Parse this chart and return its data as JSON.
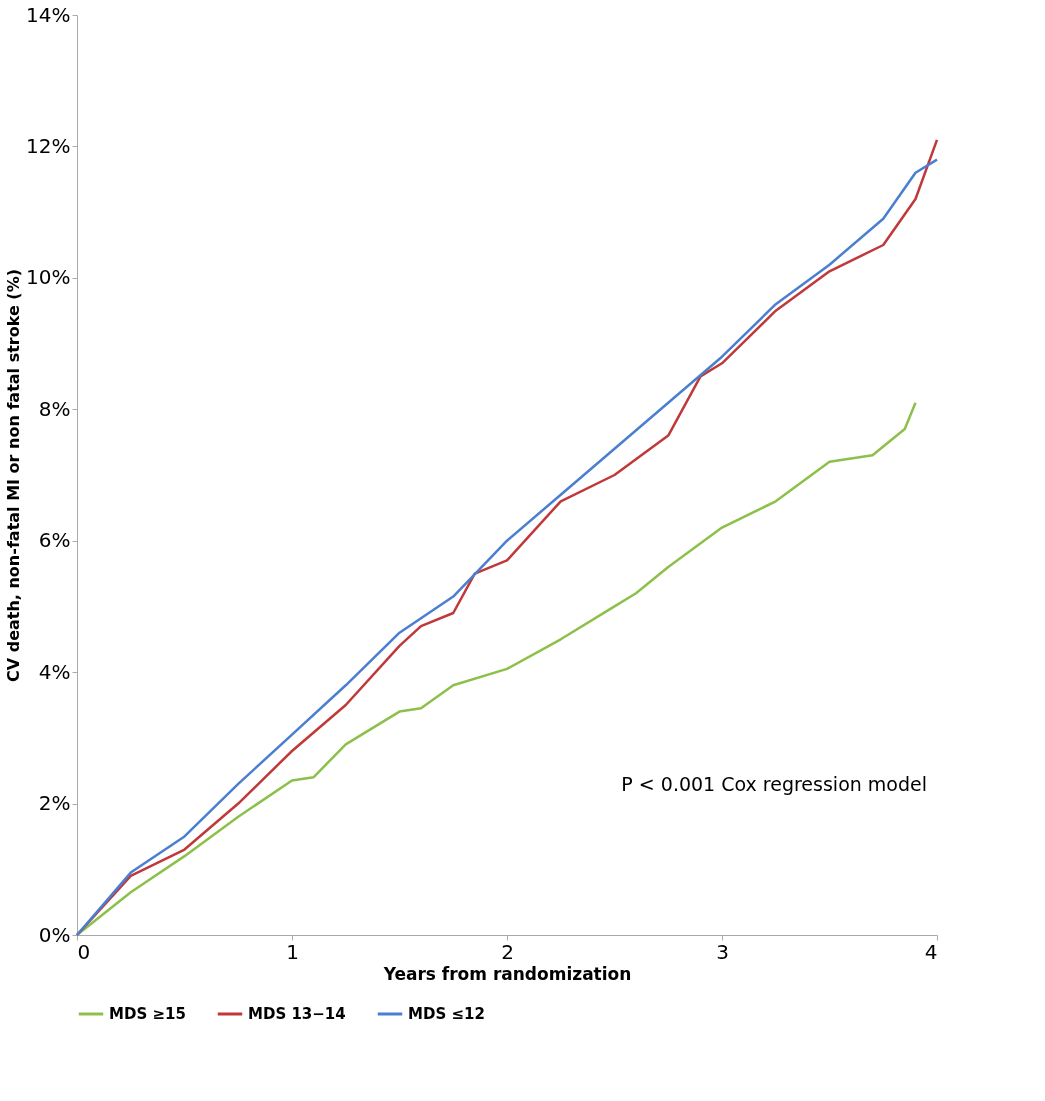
{
  "chart_data": {
    "type": "line",
    "xlabel": "Years from randomization",
    "ylabel": "CV death, non-fatal MI or non fatal stroke (%)",
    "xlim": [
      0,
      4
    ],
    "xticks": [
      0,
      1,
      2,
      3,
      4
    ],
    "ylim": [
      0,
      14
    ],
    "yticks": [
      {
        "value": 0,
        "label": "0%"
      },
      {
        "value": 2,
        "label": "2%"
      },
      {
        "value": 4,
        "label": "4%"
      },
      {
        "value": 6,
        "label": "6%"
      },
      {
        "value": 8,
        "label": "8%"
      },
      {
        "value": 10,
        "label": "10%"
      },
      {
        "value": 12,
        "label": "12%"
      },
      {
        "value": 14,
        "label": "14%"
      }
    ],
    "grid": false,
    "legend": "bottom",
    "line_style": "solid",
    "marker": "none",
    "annotations": [
      "P < 0.001 Cox regression model"
    ],
    "series": [
      {
        "name": "MDS ≥15",
        "color": "#8cc04a",
        "x": [
          0,
          0.25,
          0.5,
          0.75,
          1,
          1.1,
          1.25,
          1.5,
          1.6,
          1.75,
          2,
          2.25,
          2.5,
          2.6,
          2.75,
          3,
          3.25,
          3.5,
          3.7,
          3.85,
          3.9
        ],
        "values": [
          0,
          0.65,
          1.2,
          1.8,
          2.35,
          2.4,
          2.9,
          3.4,
          3.45,
          3.8,
          4.05,
          4.5,
          5.0,
          5.2,
          5.6,
          6.2,
          6.6,
          7.2,
          7.3,
          7.7,
          8.1
        ]
      },
      {
        "name": "MDS 13−14",
        "color": "#c0383a",
        "x": [
          0,
          0.25,
          0.5,
          0.75,
          1,
          1.25,
          1.5,
          1.6,
          1.75,
          1.85,
          2,
          2.25,
          2.5,
          2.75,
          2.9,
          3,
          3.25,
          3.5,
          3.75,
          3.9,
          4
        ],
        "values": [
          0,
          0.9,
          1.3,
          2.0,
          2.8,
          3.5,
          4.4,
          4.7,
          4.9,
          5.5,
          5.7,
          6.6,
          7.0,
          7.6,
          8.5,
          8.7,
          9.5,
          10.1,
          10.5,
          11.2,
          12.1
        ]
      },
      {
        "name": "MDS ≤12",
        "color": "#4a7fd0",
        "x": [
          0,
          0.25,
          0.5,
          0.75,
          1,
          1.25,
          1.5,
          1.75,
          2,
          2.25,
          2.5,
          2.75,
          3,
          3.25,
          3.5,
          3.75,
          3.9,
          4
        ],
        "values": [
          0,
          0.95,
          1.5,
          2.3,
          3.05,
          3.8,
          4.6,
          5.15,
          6.0,
          6.7,
          7.4,
          8.1,
          8.8,
          9.6,
          10.2,
          10.9,
          11.6,
          11.8
        ]
      }
    ]
  }
}
